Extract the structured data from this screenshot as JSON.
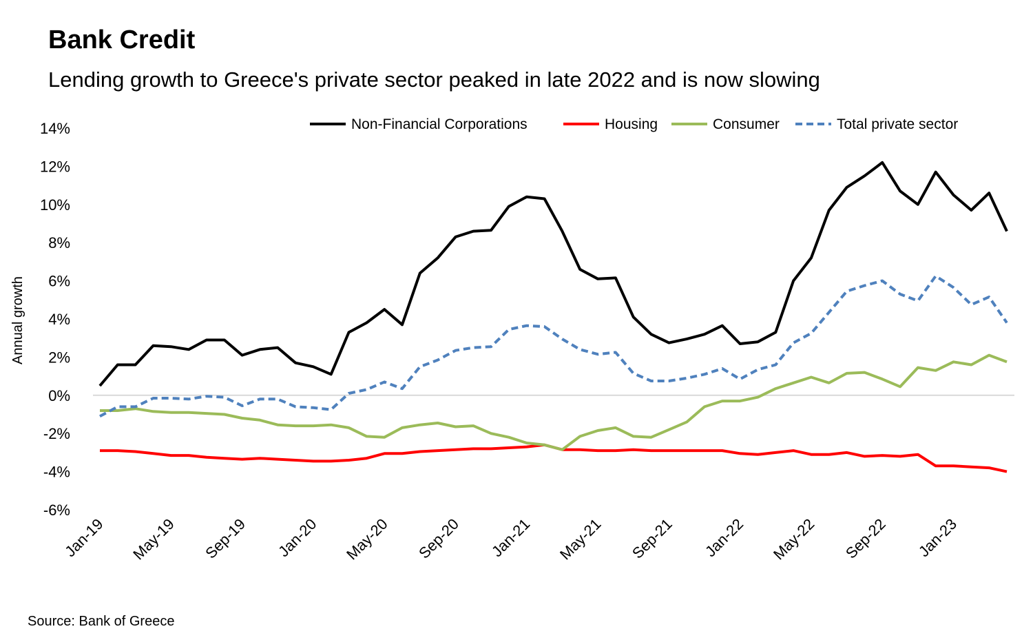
{
  "chart_data": {
    "type": "line",
    "title": "Bank Credit",
    "subtitle": "Lending growth to Greece's private sector peaked in late 2022 and is now slowing",
    "y_label": "Annual growth",
    "source": "Source: Bank of Greece",
    "categories": [
      "Jan-19",
      null,
      null,
      null,
      "May-19",
      null,
      null,
      null,
      "Sep-19",
      null,
      null,
      null,
      "Jan-20",
      null,
      null,
      null,
      "May-20",
      null,
      null,
      null,
      "Sep-20",
      null,
      null,
      null,
      "Jan-21",
      null,
      null,
      null,
      "May-21",
      null,
      null,
      null,
      "Sep-21",
      null,
      null,
      null,
      "Jan-22",
      null,
      null,
      null,
      "May-22",
      null,
      null,
      null,
      "Sep-22",
      null,
      null,
      null,
      "Jan-23",
      null,
      null,
      null
    ],
    "series": [
      {
        "name": "Non-Financial Corporations",
        "color": "#000000",
        "values": [
          0.5,
          1.6,
          1.6,
          2.6,
          2.55,
          2.4,
          2.9,
          2.9,
          2.1,
          2.4,
          2.5,
          1.7,
          1.5,
          1.1,
          3.3,
          3.8,
          4.5,
          3.7,
          6.4,
          7.2,
          8.3,
          8.6,
          8.65,
          9.9,
          10.4,
          10.3,
          8.6,
          6.6,
          6.1,
          6.15,
          4.1,
          3.2,
          2.75,
          2.95,
          3.2,
          3.65,
          2.7,
          2.8,
          3.3,
          6.0,
          7.2,
          9.7,
          10.9,
          11.5,
          12.2,
          10.7,
          10.0,
          11.7,
          10.5,
          9.7,
          10.6,
          8.6
        ]
      },
      {
        "name": "Housing",
        "color": "#ff0000",
        "values": [
          -2.9,
          -2.9,
          -2.95,
          -3.05,
          -3.15,
          -3.15,
          -3.25,
          -3.3,
          -3.35,
          -3.3,
          -3.35,
          -3.4,
          -3.45,
          -3.45,
          -3.4,
          -3.3,
          -3.05,
          -3.05,
          -2.95,
          -2.9,
          -2.85,
          -2.8,
          -2.8,
          -2.75,
          -2.7,
          -2.6,
          -2.85,
          -2.85,
          -2.9,
          -2.9,
          -2.85,
          -2.9,
          -2.9,
          -2.9,
          -2.9,
          -2.9,
          -3.05,
          -3.1,
          -3.0,
          -2.9,
          -3.1,
          -3.1,
          -3.0,
          -3.2,
          -3.15,
          -3.2,
          -3.1,
          -3.7,
          -3.7,
          -3.75,
          -3.8,
          -4.0
        ]
      },
      {
        "name": "Consumer",
        "color": "#9bbb59",
        "values": [
          -0.8,
          -0.8,
          -0.7,
          -0.85,
          -0.9,
          -0.9,
          -0.95,
          -1.0,
          -1.2,
          -1.3,
          -1.55,
          -1.6,
          -1.6,
          -1.55,
          -1.7,
          -2.15,
          -2.2,
          -1.7,
          -1.55,
          -1.45,
          -1.65,
          -1.6,
          -2.0,
          -2.2,
          -2.5,
          -2.6,
          -2.85,
          -2.15,
          -1.85,
          -1.7,
          -2.15,
          -2.2,
          -1.8,
          -1.4,
          -0.6,
          -0.3,
          -0.3,
          -0.1,
          0.35,
          0.65,
          0.95,
          0.65,
          1.15,
          1.2,
          0.85,
          0.45,
          1.45,
          1.3,
          1.75,
          1.6,
          2.1,
          1.75
        ]
      },
      {
        "name": "Total private sector",
        "color": "#4f81bd",
        "dashed": true,
        "values": [
          -1.1,
          -0.6,
          -0.6,
          -0.15,
          -0.15,
          -0.2,
          -0.05,
          -0.1,
          -0.55,
          -0.2,
          -0.2,
          -0.6,
          -0.65,
          -0.75,
          0.1,
          0.3,
          0.7,
          0.35,
          1.5,
          1.85,
          2.35,
          2.5,
          2.55,
          3.45,
          3.65,
          3.6,
          2.95,
          2.4,
          2.15,
          2.25,
          1.15,
          0.75,
          0.75,
          0.9,
          1.1,
          1.4,
          0.85,
          1.35,
          1.6,
          2.75,
          3.25,
          4.35,
          5.45,
          5.75,
          6.0,
          5.3,
          4.95,
          6.25,
          5.65,
          4.75,
          5.15,
          3.8
        ]
      }
    ],
    "ylim": [
      -6,
      14
    ],
    "yticks": [
      {
        "value": -6,
        "label": "-6%"
      },
      {
        "value": -4,
        "label": "-4%"
      },
      {
        "value": -2,
        "label": "-2%"
      },
      {
        "value": 0,
        "label": "0%"
      },
      {
        "value": 2,
        "label": "2%"
      },
      {
        "value": 4,
        "label": "4%"
      },
      {
        "value": 6,
        "label": "6%"
      },
      {
        "value": 8,
        "label": "8%"
      },
      {
        "value": 10,
        "label": "10%"
      },
      {
        "value": 12,
        "label": "12%"
      },
      {
        "value": 14,
        "label": "14%"
      }
    ],
    "legend": "top-right"
  }
}
